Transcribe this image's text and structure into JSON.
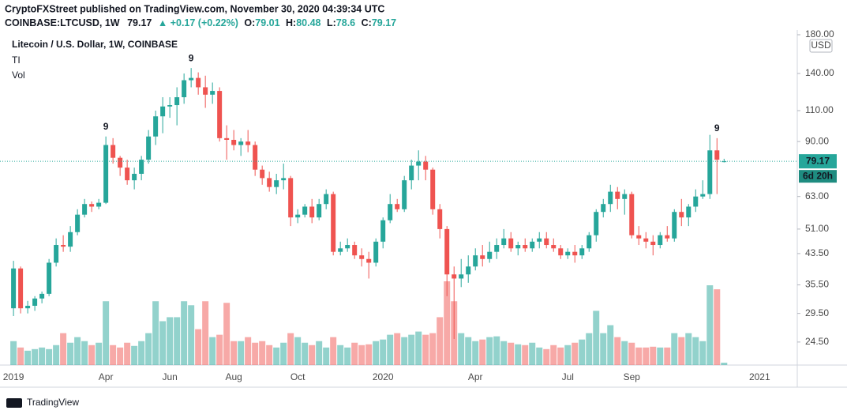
{
  "header": {
    "publisher": "CryptoFXStreet published on TradingView.com, November 30, 2020 04:39:34 UTC",
    "symbol": "COINBASE:LTCUSD, 1W",
    "change": "▲ +0.17 (+0.22%)",
    "o": "O:",
    "h": "H:",
    "l": "L:",
    "c": "C:"
  },
  "legend": {
    "name": "Litecoin / U.S. Dollar, 1W, COINBASE",
    "indicator": "TI",
    "volume": "Vol"
  },
  "footer": {
    "brand": "TradingView"
  },
  "chart_data": {
    "type": "candlestick",
    "log_scale": true,
    "grid": false,
    "currency": "USD",
    "countdown": "6d 20h",
    "up_color": "#26a69a",
    "down_color": "#ef5350",
    "xlim": [
      -1.9,
      110.3
    ],
    "xticks": [
      {
        "value": 0,
        "label": "2019"
      },
      {
        "value": 13,
        "label": "Apr"
      },
      {
        "value": 22,
        "label": "Jun"
      },
      {
        "value": 31,
        "label": "Aug"
      },
      {
        "value": 40,
        "label": "Oct"
      },
      {
        "value": 52,
        "label": "2020"
      },
      {
        "value": 65,
        "label": "Apr"
      },
      {
        "value": 78,
        "label": "Jul"
      },
      {
        "value": 87,
        "label": "Sep"
      },
      {
        "value": 105,
        "label": "2021"
      }
    ],
    "ylim": [
      21.1,
      185.6
    ],
    "yticks": [
      {
        "value": 24.5,
        "label": "24.50"
      },
      {
        "value": 29.5,
        "label": "29.50"
      },
      {
        "value": 35.5,
        "label": "35.50"
      },
      {
        "value": 43.5,
        "label": "43.50"
      },
      {
        "value": 51,
        "label": "51.00"
      },
      {
        "value": 63,
        "label": "63.00"
      },
      {
        "value": 90,
        "label": "90.00"
      },
      {
        "value": 110,
        "label": "110.00"
      },
      {
        "value": 140,
        "label": "140.00"
      },
      {
        "value": 180,
        "label": "180.00"
      }
    ],
    "annotations": [
      {
        "x": 13,
        "text": "9"
      },
      {
        "x": 25,
        "text": "9"
      },
      {
        "x": 99,
        "text": "9"
      }
    ],
    "open": [
      30.5,
      39.5,
      30.5,
      31,
      32.5,
      33.5,
      41,
      46,
      45.5,
      50,
      56,
      60,
      59,
      60.5,
      88,
      81,
      76,
      70,
      73,
      80,
      93,
      106,
      113,
      114,
      120,
      134,
      136,
      128,
      122,
      125,
      92,
      91,
      88,
      90,
      88,
      75,
      71,
      67,
      70,
      71,
      55,
      56,
      59,
      55,
      60,
      64,
      44,
      45,
      46,
      43,
      42,
      41,
      47,
      54,
      60,
      58,
      70,
      77,
      79,
      75,
      58,
      51,
      38,
      37,
      38,
      40,
      43,
      42,
      44,
      46,
      48,
      45,
      46,
      45,
      47,
      48,
      46,
      45,
      43,
      44,
      43,
      45,
      49,
      57,
      60,
      65,
      62,
      64,
      49,
      48,
      47,
      46,
      49,
      48,
      57,
      55,
      59,
      63,
      64,
      85,
      79.01
    ],
    "high": [
      41.5,
      40,
      32,
      33,
      34,
      42,
      48,
      49,
      52,
      58,
      62,
      61,
      62,
      93,
      92,
      82,
      80,
      76,
      82,
      97,
      110,
      120,
      120,
      128,
      140,
      145,
      141,
      138,
      132,
      128,
      100,
      97,
      92,
      97,
      90,
      77,
      74,
      73,
      78,
      72,
      58,
      60,
      62,
      62,
      66,
      65,
      47,
      48,
      47,
      45,
      44,
      48,
      55,
      64,
      62,
      72,
      80,
      85,
      82,
      76,
      60,
      52,
      40,
      42,
      43,
      45,
      46,
      47,
      48,
      51,
      50,
      47,
      48,
      48,
      50,
      50,
      48,
      46,
      45,
      46,
      46,
      50,
      58,
      62,
      68,
      67,
      66,
      65,
      52,
      50,
      49,
      50,
      52,
      58,
      62,
      60,
      66,
      70,
      94,
      92,
      80.48
    ],
    "low": [
      29,
      29.5,
      29.5,
      30,
      31.5,
      33,
      40,
      44,
      44,
      49,
      55,
      57,
      58,
      60,
      78,
      72,
      68,
      66,
      70,
      78,
      88,
      95,
      105,
      100,
      115,
      128,
      122,
      112,
      115,
      90,
      80,
      85,
      82,
      84,
      72,
      68,
      65,
      64,
      66,
      52,
      53,
      55,
      53,
      54,
      58,
      43,
      43,
      44,
      42,
      40,
      37,
      40,
      45,
      53,
      57,
      57,
      66,
      70,
      70,
      56,
      48,
      33,
      25,
      35,
      36,
      39,
      40,
      41,
      42,
      45,
      44,
      43,
      44,
      44,
      45,
      45,
      44,
      42,
      42,
      41,
      42,
      44,
      47,
      55,
      57,
      58,
      56,
      48,
      46,
      45,
      43,
      45,
      47,
      47,
      52,
      52,
      57,
      62,
      62,
      64,
      78.6
    ],
    "close": [
      39.5,
      30.5,
      31,
      32.5,
      33.5,
      41,
      46,
      45.5,
      50,
      56,
      60,
      59,
      60.5,
      88,
      81,
      76,
      70,
      73,
      80,
      93,
      106,
      113,
      114,
      120,
      134,
      136,
      128,
      122,
      125,
      92,
      91,
      88,
      90,
      88,
      75,
      71,
      67,
      70,
      71,
      55,
      56,
      59,
      55,
      60,
      64,
      44,
      45,
      46,
      43,
      42,
      41,
      47,
      54,
      60,
      58,
      70,
      77,
      79,
      75,
      58,
      51,
      38,
      37,
      38,
      40,
      43,
      42,
      44,
      46,
      48,
      45,
      46,
      45,
      47,
      48,
      46,
      45,
      43,
      44,
      43,
      45,
      49,
      57,
      60,
      65,
      62,
      64,
      49,
      48,
      47,
      46,
      49,
      48,
      57,
      55,
      59,
      63,
      64,
      85,
      80,
      79.17
    ],
    "volume": [
      30,
      22,
      18,
      20,
      22,
      20,
      25,
      40,
      28,
      35,
      30,
      25,
      28,
      80,
      25,
      22,
      28,
      24,
      30,
      40,
      80,
      55,
      60,
      60,
      80,
      75,
      45,
      80,
      35,
      38,
      78,
      30,
      30,
      35,
      28,
      30,
      25,
      22,
      28,
      40,
      35,
      28,
      25,
      30,
      22,
      35,
      25,
      22,
      28,
      25,
      26,
      30,
      32,
      38,
      40,
      35,
      38,
      42,
      38,
      40,
      60,
      105,
      80,
      40,
      35,
      30,
      32,
      35,
      36,
      30,
      28,
      26,
      25,
      28,
      22,
      20,
      25,
      22,
      25,
      28,
      32,
      40,
      68,
      40,
      50,
      35,
      30,
      28,
      22,
      22,
      23,
      22,
      22,
      40,
      35,
      40,
      35,
      30,
      100,
      95,
      3
    ]
  }
}
